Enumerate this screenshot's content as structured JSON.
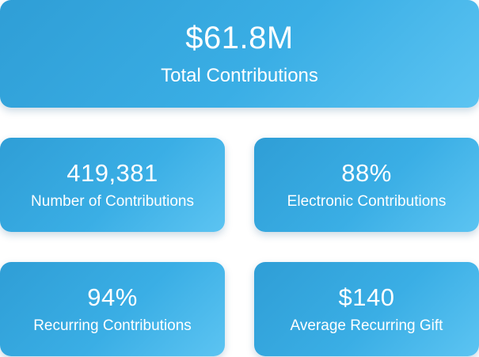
{
  "total": {
    "value": "$61.8M",
    "label": "Total Contributions"
  },
  "stats": [
    {
      "value": "419,381",
      "label": "Number of Contributions"
    },
    {
      "value": "88%",
      "label": "Electronic Contributions"
    },
    {
      "value": "94%",
      "label": "Recurring Contributions"
    },
    {
      "value": "$140",
      "label": "Average Recurring Gift"
    }
  ],
  "colors": {
    "card_gradient_start": "#2f9ed6",
    "card_gradient_end": "#5cc4f2",
    "text": "#ffffff"
  }
}
